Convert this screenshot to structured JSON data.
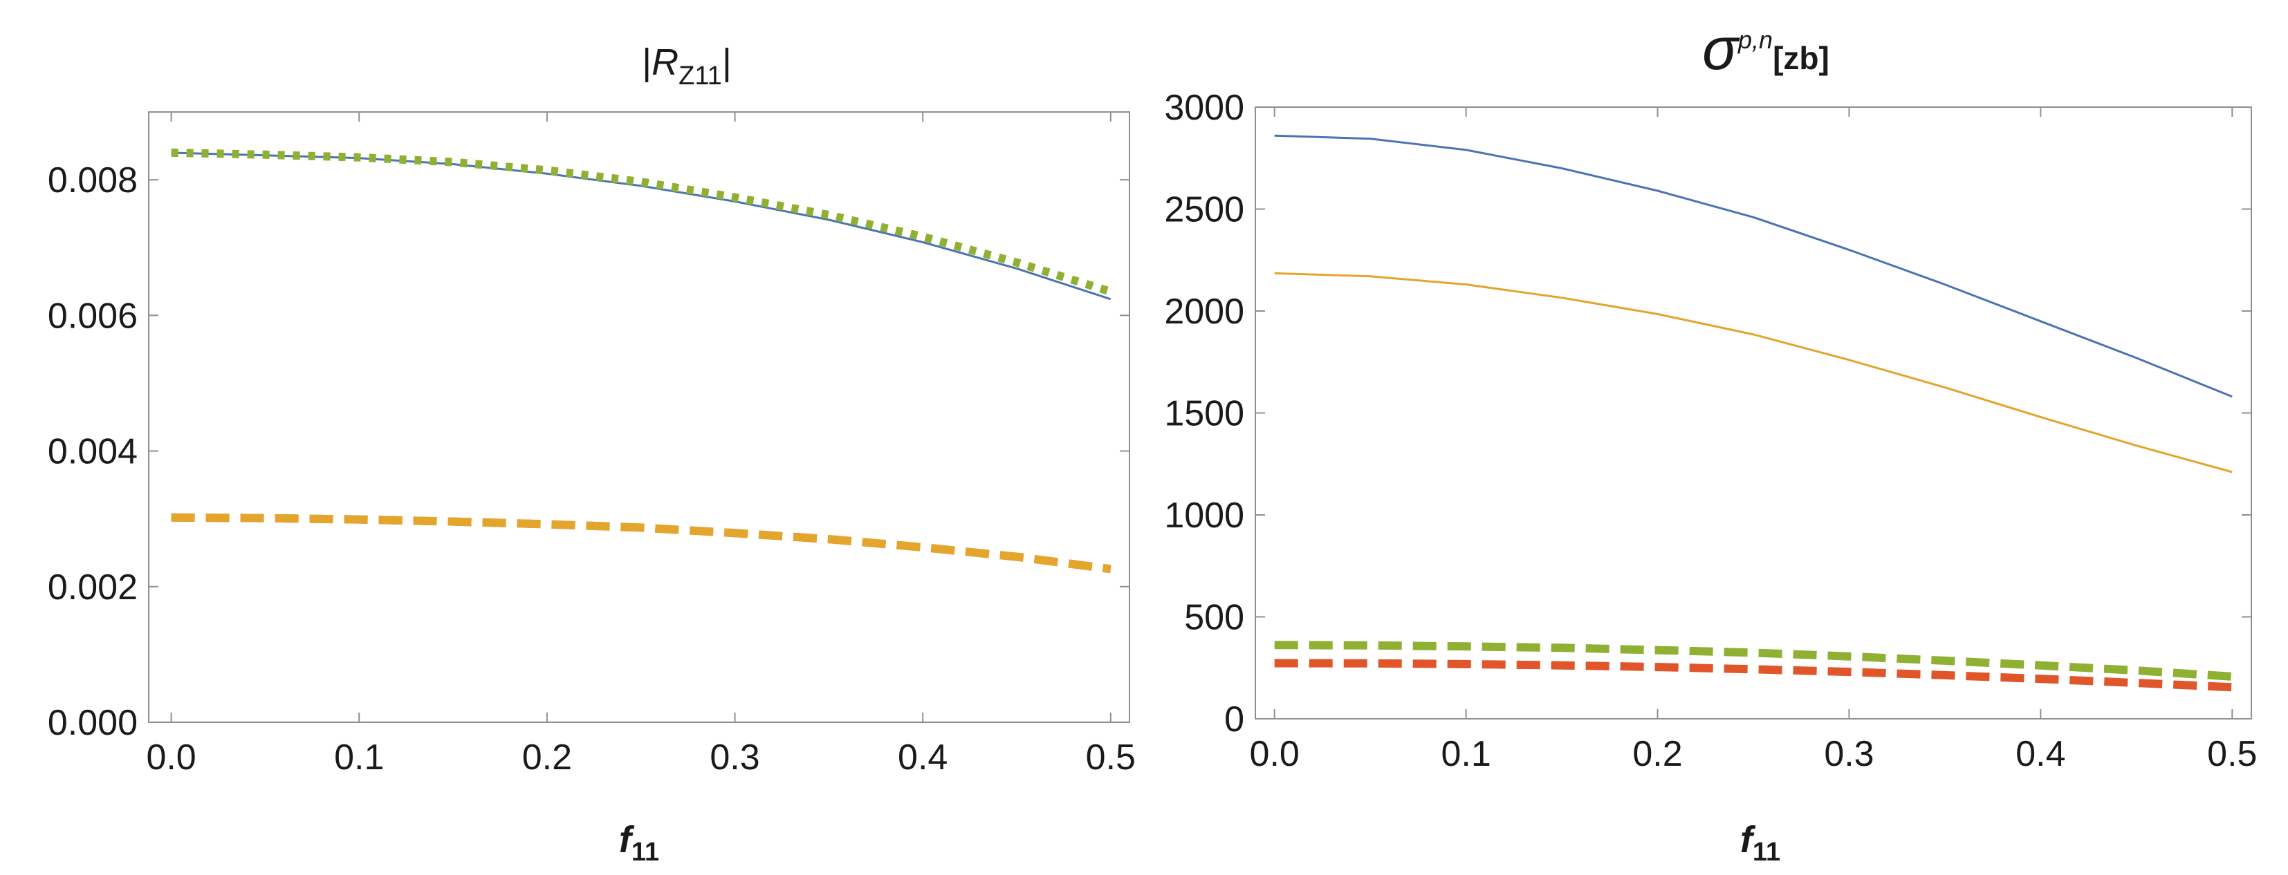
{
  "chart_data": [
    {
      "type": "line",
      "title": {
        "prefix": "|",
        "main": "R",
        "sub": "Z11",
        "suffix": "|"
      },
      "xlabel": {
        "main": "f",
        "sub": "11"
      },
      "ylabel": "",
      "xlim": [
        -0.012,
        0.51
      ],
      "ylim": [
        0,
        0.009
      ],
      "xticks": [
        0.0,
        0.1,
        0.2,
        0.3,
        0.4,
        0.5
      ],
      "xtick_labels": [
        "0.0",
        "0.1",
        "0.2",
        "0.3",
        "0.4",
        "0.5"
      ],
      "yticks": [
        0.0,
        0.002,
        0.004,
        0.006,
        0.008
      ],
      "ytick_labels": [
        "0.000",
        "0.002",
        "0.004",
        "0.006",
        "0.008"
      ],
      "grid": false,
      "series": [
        {
          "color": "#4a74b4",
          "style": "solid",
          "x": [
            0.0,
            0.05,
            0.1,
            0.15,
            0.2,
            0.25,
            0.3,
            0.35,
            0.4,
            0.45,
            0.5
          ],
          "y": [
            0.0084,
            0.00836,
            0.00832,
            0.00823,
            0.00809,
            0.00791,
            0.00768,
            0.00741,
            0.00708,
            0.00669,
            0.00624
          ]
        },
        {
          "color": "#8fb032",
          "style": "dotted",
          "x": [
            0.0,
            0.05,
            0.1,
            0.15,
            0.2,
            0.25,
            0.3,
            0.35,
            0.4,
            0.45,
            0.5
          ],
          "y": [
            0.0084,
            0.00837,
            0.00833,
            0.00826,
            0.00814,
            0.00797,
            0.00774,
            0.00748,
            0.00716,
            0.00678,
            0.00635
          ]
        },
        {
          "color": "#e57a2a",
          "style": "dashed",
          "x": [
            0.0,
            0.05,
            0.1,
            0.15,
            0.2,
            0.25,
            0.3,
            0.35,
            0.4,
            0.45,
            0.5
          ],
          "y": [
            0.00302,
            0.00301,
            0.00299,
            0.00296,
            0.00292,
            0.00287,
            0.00279,
            0.0027,
            0.00258,
            0.00244,
            0.00226
          ]
        },
        {
          "color": "#e3a52c",
          "style": "dashed",
          "x": [
            0.0,
            0.05,
            0.1,
            0.15,
            0.2,
            0.25,
            0.3,
            0.35,
            0.4,
            0.45,
            0.5
          ],
          "y": [
            0.00302,
            0.00301,
            0.00299,
            0.00296,
            0.00292,
            0.00287,
            0.00279,
            0.0027,
            0.00258,
            0.00244,
            0.00226
          ]
        }
      ]
    },
    {
      "type": "line",
      "title": {
        "main": "σ",
        "sup": "p,n",
        "suffix": "[zb]"
      },
      "xlabel": {
        "main": "f",
        "sub": "11"
      },
      "ylabel": "",
      "xlim": [
        -0.01,
        0.51
      ],
      "ylim": [
        0,
        3000
      ],
      "xticks": [
        0.0,
        0.1,
        0.2,
        0.3,
        0.4,
        0.5
      ],
      "xtick_labels": [
        "0.0",
        "0.1",
        "0.2",
        "0.3",
        "0.4",
        "0.5"
      ],
      "yticks": [
        0,
        500,
        1000,
        1500,
        2000,
        2500,
        3000
      ],
      "ytick_labels": [
        "0",
        "500",
        "1000",
        "1500",
        "2000",
        "2500",
        "3000"
      ],
      "grid": false,
      "series": [
        {
          "color": "#4a74b4",
          "style": "solid",
          "x": [
            0.0,
            0.05,
            0.1,
            0.15,
            0.2,
            0.25,
            0.3,
            0.35,
            0.4,
            0.45,
            0.5
          ],
          "y": [
            2860,
            2845,
            2790,
            2700,
            2590,
            2460,
            2300,
            2130,
            1950,
            1770,
            1580
          ]
        },
        {
          "color": "#e3a52c",
          "style": "solid",
          "x": [
            0.0,
            0.05,
            0.1,
            0.15,
            0.2,
            0.25,
            0.3,
            0.35,
            0.4,
            0.45,
            0.5
          ],
          "y": [
            2185,
            2170,
            2130,
            2065,
            1985,
            1885,
            1760,
            1625,
            1480,
            1340,
            1210
          ]
        },
        {
          "color": "#8fb032",
          "style": "dashed",
          "x": [
            0.0,
            0.05,
            0.1,
            0.15,
            0.2,
            0.25,
            0.3,
            0.35,
            0.4,
            0.45,
            0.5
          ],
          "y": [
            362,
            360,
            355,
            348,
            337,
            324,
            306,
            285,
            262,
            237,
            207
          ]
        },
        {
          "color": "#e0552a",
          "style": "dashed",
          "x": [
            0.0,
            0.05,
            0.1,
            0.15,
            0.2,
            0.25,
            0.3,
            0.35,
            0.4,
            0.45,
            0.5
          ],
          "y": [
            273,
            272,
            268,
            262,
            254,
            243,
            230,
            214,
            196,
            176,
            155
          ]
        }
      ]
    }
  ]
}
